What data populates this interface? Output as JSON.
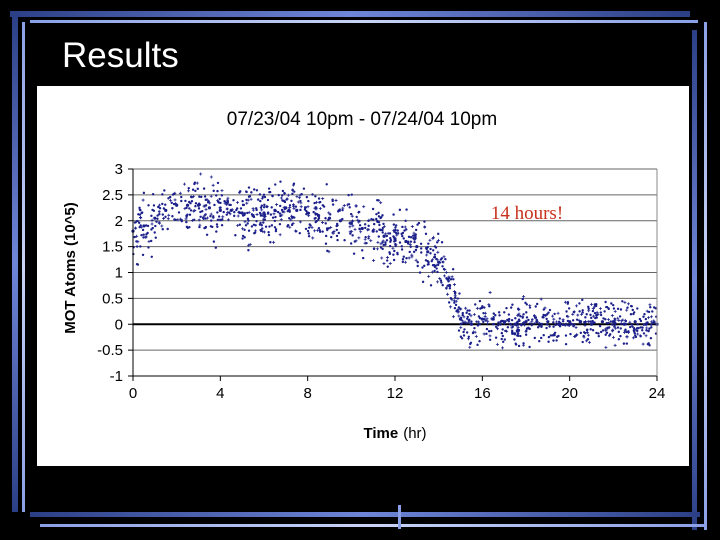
{
  "slide": {
    "title": "Results"
  },
  "colors": {
    "background": "#000000",
    "accent_dark": "#2b3f86",
    "accent_light": "#8aa0e6",
    "marker": "#1b1f8a",
    "annotation": "#c8301c"
  },
  "chart_data": {
    "type": "scatter",
    "title": "07/23/04 10pm - 07/24/04 10pm",
    "xlabel": "Time",
    "xlabel_unit": "(hr)",
    "ylabel": "MOT Atoms  (10^5)",
    "xlim": [
      0,
      24
    ],
    "ylim": [
      -1,
      3
    ],
    "x_ticks": [
      "0",
      "4",
      "8",
      "12",
      "16",
      "20",
      "24"
    ],
    "y_ticks": [
      "3",
      "2.5",
      "2",
      "1.5",
      "1",
      "0.5",
      "0",
      "-0.5",
      "-1"
    ],
    "grid": "horizontal",
    "annotation": "14 hours!",
    "series": [
      {
        "marker": "dots and crosses",
        "x": [
          0,
          0.5,
          1,
          1.5,
          2,
          2.5,
          3,
          3.5,
          4,
          4.5,
          5,
          5.5,
          6,
          6.5,
          7,
          7.5,
          8,
          8.5,
          9,
          9.5,
          10,
          10.5,
          11,
          11.5,
          12,
          12.5,
          13,
          13.5,
          14,
          14.5,
          15,
          15.5,
          16,
          16.5,
          17,
          17.5,
          18,
          18.5,
          19,
          19.5,
          20,
          20.5,
          21,
          21.5,
          22,
          22.5,
          23,
          23.5,
          24
        ],
        "y": [
          1.8,
          1.9,
          2.05,
          2.2,
          2.3,
          2.3,
          2.3,
          2.25,
          2.2,
          2.2,
          2.15,
          2.1,
          2.15,
          2.2,
          2.25,
          2.2,
          2.15,
          2.1,
          2.05,
          2.0,
          1.95,
          1.85,
          1.8,
          1.7,
          1.65,
          1.6,
          1.5,
          1.4,
          1.2,
          0.75,
          0.1,
          0.0,
          0.1,
          0.1,
          0.05,
          0.0,
          0.05,
          0.05,
          0.05,
          0.0,
          0.05,
          0.05,
          0.0,
          0.05,
          0.05,
          0.0,
          0.05,
          0.0,
          0.0
        ]
      }
    ]
  }
}
